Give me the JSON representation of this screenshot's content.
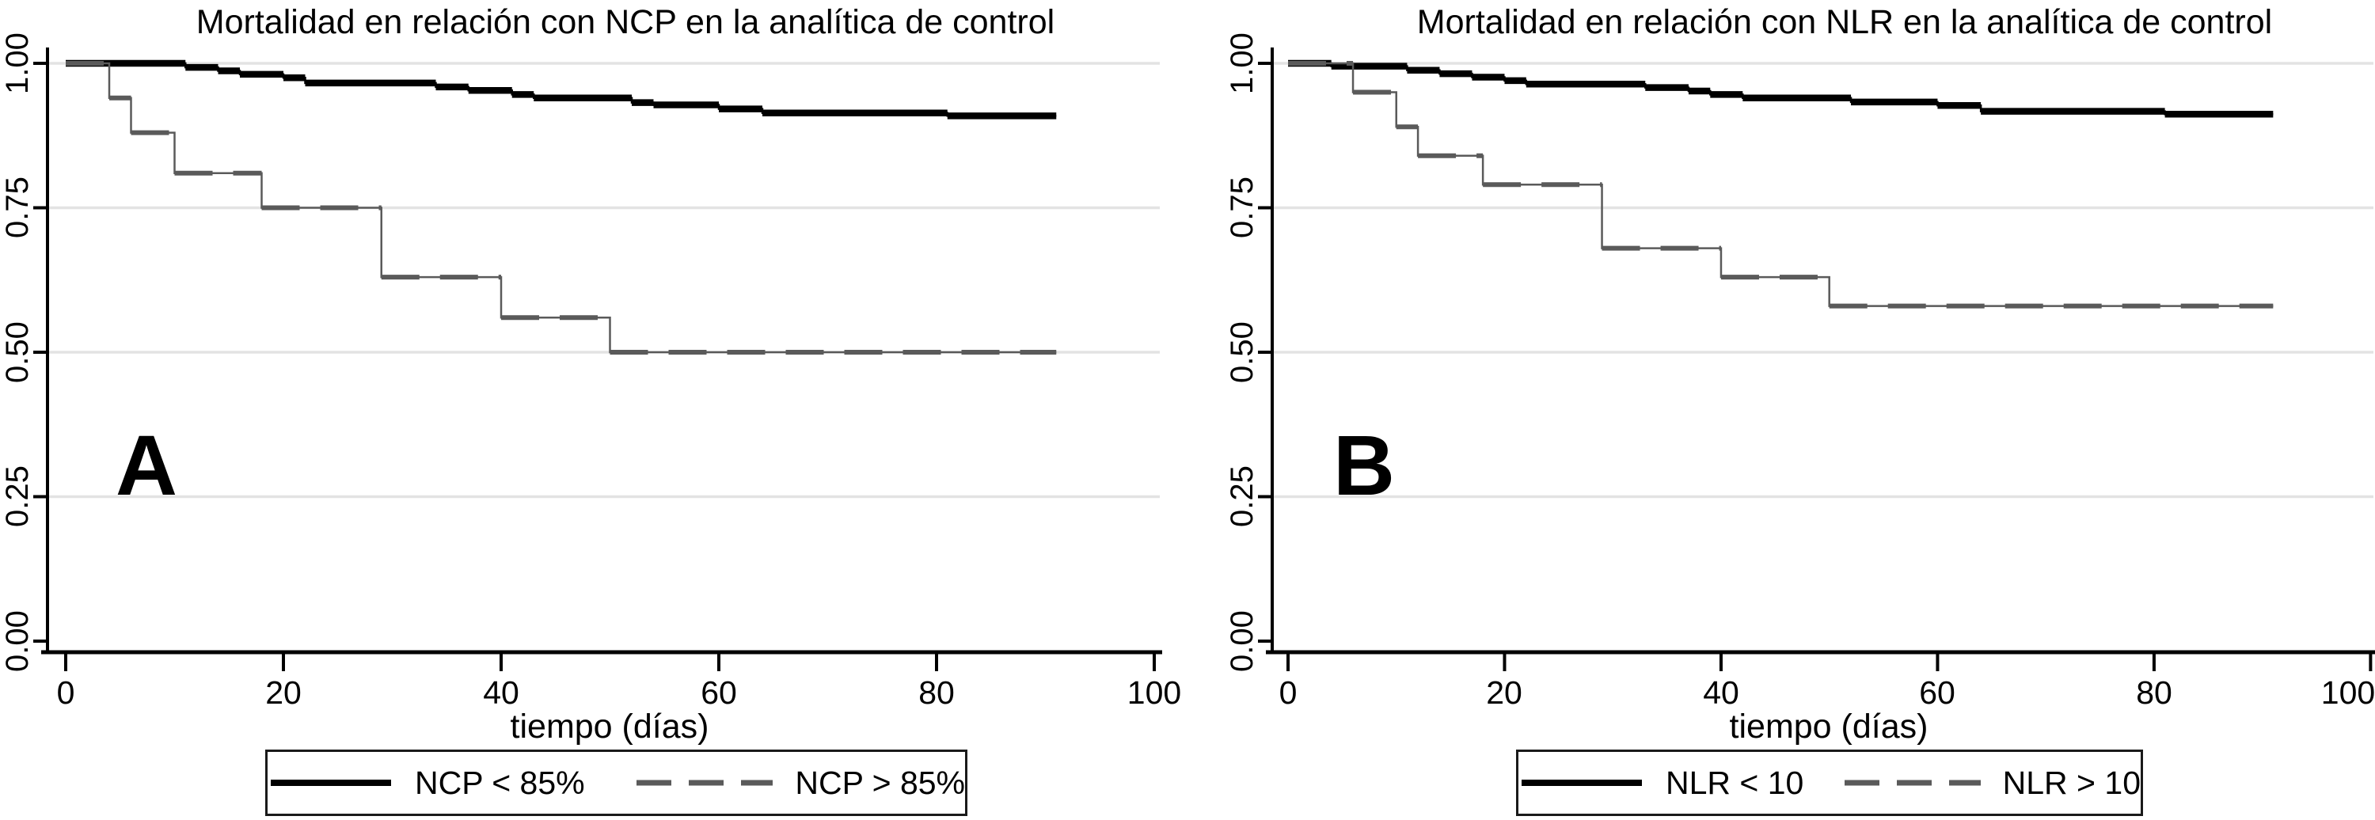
{
  "palette": {
    "solid_series": "#000000",
    "dashed_series": "#5a5a5a",
    "gridline": "#e3e3e3",
    "axis": "#000000",
    "background": "#ffffff",
    "legend_border": "#1a1a1a"
  },
  "chart_data": [
    {
      "type": "line",
      "subtype": "kaplan-meier-step",
      "panel_label": "A",
      "title": "Mortalidad en relación con NCP en la analítica de control",
      "xlabel": "tiempo (días)",
      "ylabel": "",
      "xlim": [
        0,
        100
      ],
      "ylim": [
        0.0,
        1.0
      ],
      "xticks": [
        0,
        20,
        40,
        60,
        80,
        100
      ],
      "xtick_labels": [
        "0",
        "20",
        "40",
        "60",
        "80",
        "100"
      ],
      "yticks": [
        1.0,
        0.75,
        0.5,
        0.25,
        0.0
      ],
      "ytick_labels": [
        "1.00",
        "0.75",
        "0.50",
        "0.25",
        "0.00"
      ],
      "grid": true,
      "legend_position": "bottom-center",
      "series": [
        {
          "name": "NCP < 85%",
          "style": "solid",
          "color": "#000000",
          "points": [
            [
              0,
              1.0
            ],
            [
              11,
              0.993
            ],
            [
              14,
              0.987
            ],
            [
              16,
              0.981
            ],
            [
              20,
              0.975
            ],
            [
              22,
              0.966
            ],
            [
              34,
              0.959
            ],
            [
              37,
              0.953
            ],
            [
              41,
              0.946
            ],
            [
              43,
              0.94
            ],
            [
              52,
              0.932
            ],
            [
              54,
              0.928
            ],
            [
              60,
              0.921
            ],
            [
              64,
              0.914
            ],
            [
              81,
              0.909
            ],
            [
              91,
              0.909
            ]
          ]
        },
        {
          "name": "NCP > 85%",
          "style": "dashed",
          "color": "#5a5a5a",
          "points": [
            [
              0,
              1.0
            ],
            [
              4,
              0.94
            ],
            [
              6,
              0.88
            ],
            [
              10,
              0.81
            ],
            [
              18,
              0.75
            ],
            [
              29,
              0.63
            ],
            [
              40,
              0.56
            ],
            [
              50,
              0.5
            ],
            [
              91,
              0.5
            ]
          ]
        }
      ]
    },
    {
      "type": "line",
      "subtype": "kaplan-meier-step",
      "panel_label": "B",
      "title": "Mortalidad en relación con NLR en la analítica de control",
      "xlabel": "tiempo (días)",
      "ylabel": "",
      "xlim": [
        0,
        100
      ],
      "ylim": [
        0.0,
        1.0
      ],
      "xticks": [
        0,
        20,
        40,
        60,
        80,
        100
      ],
      "xtick_labels": [
        "0",
        "20",
        "40",
        "60",
        "80",
        "100"
      ],
      "yticks": [
        1.0,
        0.75,
        0.5,
        0.25,
        0.0
      ],
      "ytick_labels": [
        "1.00",
        "0.75",
        "0.50",
        "0.25",
        "0.00"
      ],
      "grid": true,
      "legend_position": "bottom-center",
      "series": [
        {
          "name": "NLR < 10",
          "style": "solid",
          "color": "#000000",
          "points": [
            [
              0,
              1.0
            ],
            [
              4,
              0.995
            ],
            [
              11,
              0.988
            ],
            [
              14,
              0.982
            ],
            [
              17,
              0.976
            ],
            [
              20,
              0.97
            ],
            [
              22,
              0.964
            ],
            [
              33,
              0.958
            ],
            [
              37,
              0.952
            ],
            [
              39,
              0.946
            ],
            [
              42,
              0.94
            ],
            [
              52,
              0.933
            ],
            [
              60,
              0.927
            ],
            [
              64,
              0.917
            ],
            [
              81,
              0.912
            ],
            [
              91,
              0.912
            ]
          ]
        },
        {
          "name": "NLR > 10",
          "style": "dashed",
          "color": "#5a5a5a",
          "points": [
            [
              0,
              1.0
            ],
            [
              6,
              0.95
            ],
            [
              10,
              0.89
            ],
            [
              12,
              0.84
            ],
            [
              18,
              0.79
            ],
            [
              29,
              0.68
            ],
            [
              40,
              0.63
            ],
            [
              50,
              0.58
            ],
            [
              91,
              0.58
            ]
          ]
        }
      ]
    }
  ]
}
